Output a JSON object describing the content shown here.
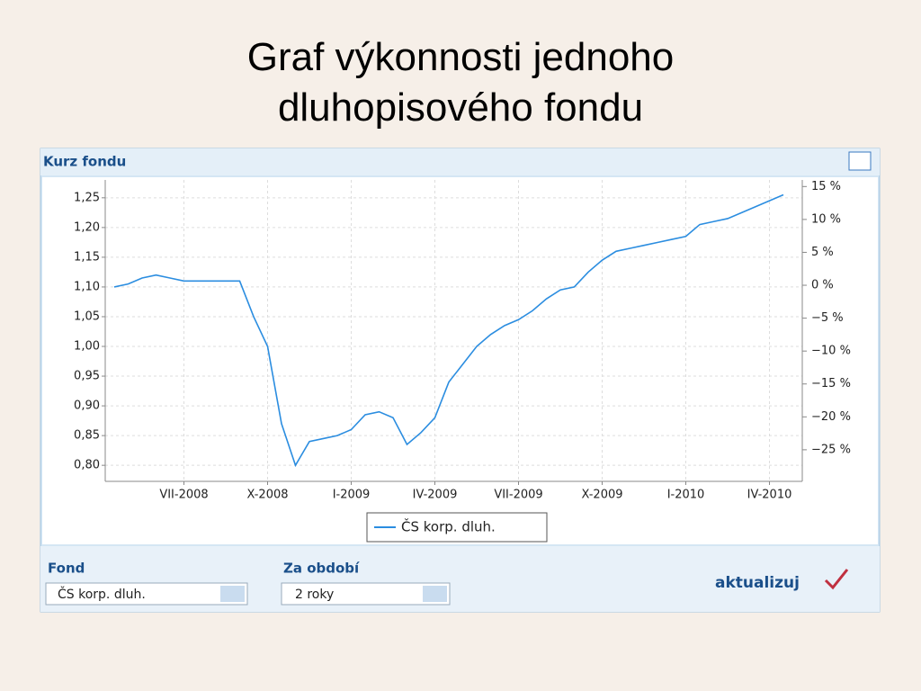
{
  "slide_title": "Graf výkonnosti jednoho dluhopisového fondu",
  "widget": {
    "header": "Kurz fondu",
    "form": {
      "fund_label": "Fond",
      "fund_value": "ČS korp. dluh.",
      "period_label": "Za období",
      "period_value": "2 roky",
      "button": "aktualizuj"
    }
  },
  "chart_data": {
    "type": "line",
    "categories": [
      null,
      null,
      null,
      null,
      null,
      "VII-2008",
      null,
      null,
      null,
      null,
      null,
      "X-2008",
      null,
      null,
      null,
      null,
      null,
      "I-2009",
      null,
      null,
      null,
      null,
      null,
      "IV-2009",
      null,
      null,
      null,
      null,
      null,
      "VII-2009",
      null,
      null,
      null,
      null,
      null,
      "X-2009",
      null,
      null,
      null,
      null,
      null,
      "I-2010",
      null,
      null,
      null,
      null,
      null,
      "IV-2010",
      null
    ],
    "series": [
      {
        "name": "ČS korp. dluh.",
        "color": "#2b8de0",
        "values": [
          1.1,
          1.105,
          1.115,
          1.12,
          1.115,
          1.11,
          1.11,
          1.11,
          1.11,
          1.11,
          1.05,
          1.0,
          0.87,
          0.8,
          0.84,
          0.845,
          0.85,
          0.86,
          0.885,
          0.89,
          0.88,
          0.835,
          0.855,
          0.88,
          0.94,
          0.97,
          1.0,
          1.02,
          1.035,
          1.045,
          1.06,
          1.08,
          1.095,
          1.1,
          1.125,
          1.145,
          1.16,
          1.165,
          1.17,
          1.175,
          1.18,
          1.185,
          1.205,
          1.21,
          1.215,
          1.225,
          1.235,
          1.245,
          1.255
        ]
      }
    ],
    "ylim": [
      0.773,
      1.28
    ],
    "yticks": [
      {
        "value": 0.8,
        "label": "0,80"
      },
      {
        "value": 0.85,
        "label": "0,85"
      },
      {
        "value": 0.9,
        "label": "0,90"
      },
      {
        "value": 0.95,
        "label": "0,95"
      },
      {
        "value": 1.0,
        "label": "1,00"
      },
      {
        "value": 1.05,
        "label": "1,05"
      },
      {
        "value": 1.1,
        "label": "1,10"
      },
      {
        "value": 1.15,
        "label": "1,15"
      },
      {
        "value": 1.2,
        "label": "1,20"
      },
      {
        "value": 1.25,
        "label": "1,25"
      }
    ],
    "y2lim": [
      -29.8,
      16
    ],
    "y2ticks": [
      {
        "value": -25,
        "label": "−25 %"
      },
      {
        "value": -20,
        "label": "−20 %"
      },
      {
        "value": -15,
        "label": "−15 %"
      },
      {
        "value": -10,
        "label": "−10 %"
      },
      {
        "value": -5,
        "label": "−5 %"
      },
      {
        "value": 0,
        "label": "0 %"
      },
      {
        "value": 5,
        "label": "5 %"
      },
      {
        "value": 10,
        "label": "10 %"
      },
      {
        "value": 15,
        "label": "15 %"
      }
    ],
    "grid": true
  }
}
